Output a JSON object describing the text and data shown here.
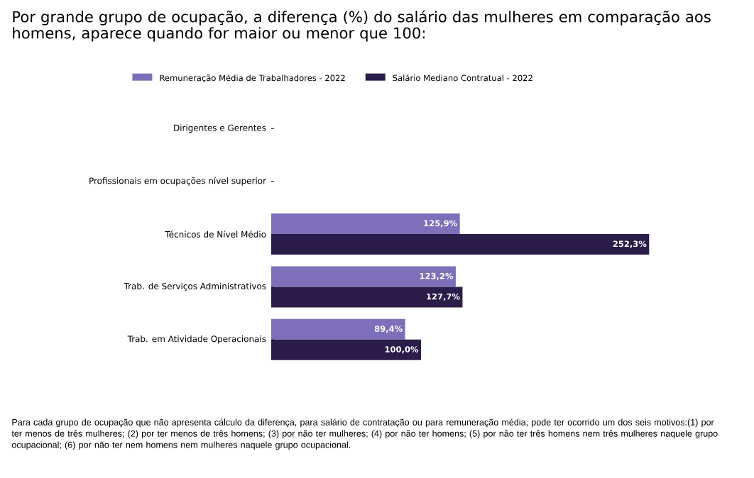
{
  "chart_data": {
    "type": "bar",
    "orientation": "horizontal",
    "title": "Por grande grupo de ocupação, a diferença (%) do salário das mulheres em comparação aos homens, aparece quando for maior ou menor que 100:",
    "categories": [
      "Dirigentes e Gerentes",
      "Profissionais em ocupações nível superior",
      "Técnicos de Nível Médio",
      "Trab. de Serviços Administrativos",
      "Trab. em Atividade Operacionais"
    ],
    "series": [
      {
        "name": "Remuneração Média de Trabalhadores - 2022",
        "color": "#7e6fba",
        "values": [
          null,
          null,
          125.9,
          123.2,
          89.4
        ],
        "value_labels": [
          null,
          null,
          "125,9%",
          "123,2%",
          "89,4%"
        ]
      },
      {
        "name": "Salário Mediano Contratual - 2022",
        "color": "#2b1d4a",
        "values": [
          null,
          null,
          252.3,
          127.7,
          100.0
        ],
        "value_labels": [
          null,
          null,
          "252,3%",
          "127,7%",
          "100,0%"
        ]
      }
    ],
    "xlim": [
      0,
      255
    ],
    "tick_labels": "y",
    "legend": "top",
    "grid": false,
    "annotations": [
      "Para cada grupo de ocupação que não apresenta cálculo da diferença, para salário de contratação ou para remuneração média, pode ter ocorrido um dos seis motivos:(1) por ter menos de três mulheres; (2) por ter menos de três homens; (3) por não ter mulheres; (4) por não ter homens; (5) por não ter três homens nem três mulheres naquele grupo ocupacional; (6) por não ter nem homens nem mulheres naquele grupo ocupacional."
    ]
  }
}
